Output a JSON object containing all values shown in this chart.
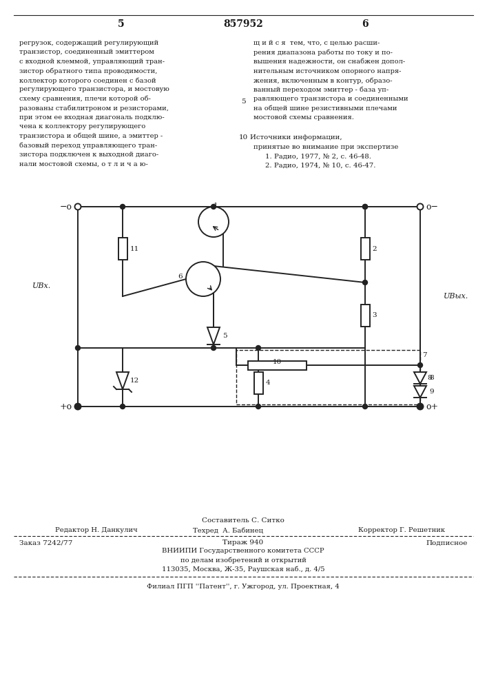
{
  "page_num_left": "5",
  "patent_num": "857952",
  "page_num_right": "6",
  "text_left": "регрузок, содержащий регулирующий\nтранзистор, соединенный эмиттером\nс входной клеммой, управляющий тран-\nзистор обратного типа проводимости,\nколлектор которого соединен с базой\nрегулирующего транзистора, и мостовую\nсхему сравнения, плечи которой об-\nразованы стабилитроном и резисторами,\nпри этом ее входная диагональ подклю-\nчена к коллектору регулирующего\nтранзистора и общей шине, а эмиттер -\nбазовый переход управляющего тран-\nзистора подключен к выходной диаго-\nнали мостовой схемы, о т л и ч а ю-",
  "line_num_5": "5",
  "line_num_10": "10",
  "text_right": "щ и й с я  тем, что, с целью расши-\nрения диапазона работы по току и по-\nвышения надежности, он снабжен допол-\nнительным источником опорного напря-\nжения, включенным в контур, образо-\nванный переходом эмиттер - база уп-\nравляющего транзистора и соединенными\nна общей шине резистивными плечами\nмостовой схемы сравнения.",
  "sources_title": "Источники информации,",
  "sources_subtitle": "принятые во внимание при экспертизе",
  "source1": "1. Радио, 1977, № 2, с. 46-48.",
  "source2": "2. Радио, 1974, № 10, с. 46-47.",
  "editor_label": "Редактор Н. Данкулич",
  "composer_label": "Составитель С. Ситко",
  "techred_label": "Техред  А. Бабинец",
  "corrector_label": "Корректор Г. Решетник",
  "order_label": "Заказ 7242/77",
  "tirazh_label": "Тираж 940",
  "podpisnoe_label": "Подписное",
  "vniip1": "ВНИИПИ Государственного комитета СССР",
  "vniip2": "по делам изобретений и открытий",
  "vniip3": "113035, Москва, Ж-35, Раушская наб., д. 4/5",
  "filial": "Филиал ПГП ''Патент'', г. Ужгород, ул. Проектная, 4",
  "bg_color": "#ffffff",
  "text_color": "#1a1a1a",
  "circuit_color": "#222222"
}
